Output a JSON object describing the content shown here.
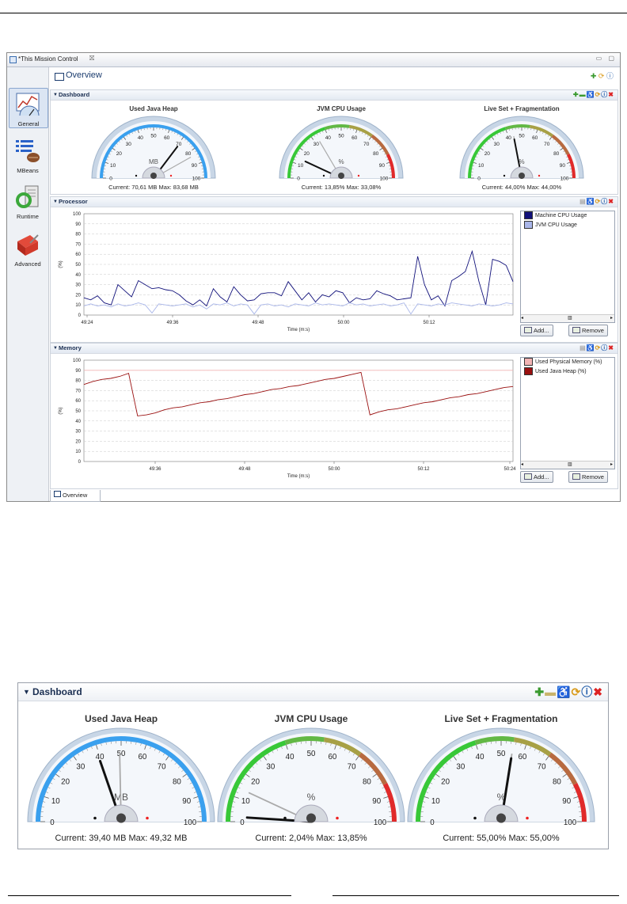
{
  "window": {
    "title": "*This Mission Control",
    "close_glyph": "⛝",
    "window_controls": "▭ ▢"
  },
  "sidebar": {
    "items": [
      {
        "label": "General",
        "icon": "general-chart-icon",
        "selected": true
      },
      {
        "label": "MBeans",
        "icon": "mbeans-icon",
        "selected": false
      },
      {
        "label": "Runtime",
        "icon": "runtime-icon",
        "selected": false
      },
      {
        "label": "Advanced",
        "icon": "advanced-toolbox-icon",
        "selected": false
      }
    ]
  },
  "overview": {
    "title": "Overview",
    "actions": [
      "add-icon",
      "refresh-icon",
      "help-icon"
    ],
    "bottom_tab": "Overview"
  },
  "dashboard": {
    "title": "Dashboard",
    "actions": [
      "add-icon",
      "remove-icon",
      "chart-disabled-icon",
      "refresh-icon",
      "help-icon",
      "close-icon"
    ],
    "gauges": [
      {
        "title": "Used Java Heap",
        "unit": "MB",
        "current_label": "Current: 70,61 MB",
        "max_label": "Max: 83,68 MB",
        "current": 70.61,
        "max": 83.68,
        "colored_arc": false
      },
      {
        "title": "JVM CPU Usage",
        "unit": "%",
        "current_label": "Current: 13,85%",
        "max_label": "Max: 33,08%",
        "current": 13.85,
        "max": 33.08,
        "colored_arc": true
      },
      {
        "title": "Live Set + Fragmentation",
        "unit": "%",
        "current_label": "Current: 44,00%",
        "max_label": "Max: 44,00%",
        "current": 44.0,
        "max": 44.0,
        "colored_arc": true
      }
    ],
    "ticks": [
      "0",
      "10",
      "20",
      "30",
      "40",
      "50",
      "60",
      "70",
      "80",
      "90",
      "100"
    ]
  },
  "processor": {
    "title": "Processor",
    "legend": [
      "Machine CPU Usage",
      "JVM CPU Usage"
    ],
    "legend_colors": [
      "#10107a",
      "#a9b6e9"
    ],
    "buttons": [
      "Add...",
      "Remove"
    ],
    "actions": [
      "chart-disabled-icon",
      "pin-icon",
      "refresh-icon",
      "help-icon",
      "close-icon"
    ]
  },
  "memory": {
    "title": "Memory",
    "legend": [
      "Used Physical Memory (%)",
      "Used Java Heap (%)"
    ],
    "legend_colors": [
      "#f2b4b4",
      "#9a1010"
    ],
    "buttons": [
      "Add...",
      "Remove"
    ],
    "actions": [
      "chart-disabled-icon",
      "pin-icon",
      "refresh-icon",
      "help-icon",
      "close-icon"
    ]
  },
  "dashboard2": {
    "title": "Dashboard",
    "actions": [
      "add-icon",
      "remove-icon",
      "chart-disabled-icon",
      "refresh-icon",
      "help-icon",
      "close-icon"
    ],
    "gauges": [
      {
        "title": "Used Java Heap",
        "unit": "MB",
        "current_label": "Current: 39,40 MB",
        "max_label": "Max: 49,32 MB",
        "current": 39.4,
        "max": 49.32,
        "colored_arc": false
      },
      {
        "title": "JVM CPU Usage",
        "unit": "%",
        "current_label": "Current: 2,04%",
        "max_label": "Max: 13,85%",
        "current": 2.04,
        "max": 13.85,
        "colored_arc": true
      },
      {
        "title": "Live Set + Fragmentation",
        "unit": "%",
        "current_label": "Current: 55,00%",
        "max_label": "Max: 55,00%",
        "current": 55.0,
        "max": 55.0,
        "colored_arc": true
      }
    ]
  },
  "chart_data": [
    {
      "type": "line",
      "xlabel": "Time (m:s)",
      "ylabel": "(%)",
      "ylim": [
        0,
        100
      ],
      "yticks": [
        "0",
        "10",
        "20",
        "30",
        "40",
        "50",
        "60",
        "70",
        "80",
        "90",
        "100"
      ],
      "xticks": [
        "49:24",
        "49:36",
        "49:48",
        "50:00",
        "50:12"
      ],
      "series": [
        {
          "name": "Machine CPU Usage",
          "color": "#10107a",
          "values": [
            17,
            15,
            19,
            12,
            10,
            30,
            24,
            18,
            34,
            30,
            26,
            27,
            25,
            24,
            20,
            14,
            10,
            15,
            9,
            26,
            18,
            13,
            28,
            20,
            14,
            15,
            21,
            22,
            22,
            19,
            33,
            24,
            15,
            22,
            13,
            20,
            18,
            24,
            22,
            12,
            17,
            15,
            16,
            24,
            21,
            19,
            15,
            16,
            17,
            58,
            30,
            15,
            19,
            9,
            34,
            38,
            43,
            63,
            33,
            10,
            55,
            53,
            49,
            33
          ]
        },
        {
          "name": "JVM CPU Usage",
          "color": "#a9b6e9",
          "values": [
            9,
            11,
            9,
            10,
            8,
            11,
            9,
            10,
            12,
            10,
            2,
            11,
            10,
            9,
            10,
            11,
            8,
            10,
            6,
            11,
            10,
            12,
            9,
            11,
            10,
            1,
            10,
            11,
            9,
            10,
            8,
            11,
            10,
            9,
            12,
            10,
            11,
            10,
            9,
            12,
            10,
            11,
            9,
            10,
            11,
            9,
            10,
            12,
            1,
            11,
            10,
            9,
            11,
            10,
            12,
            11,
            10,
            9,
            11,
            10,
            9,
            10,
            12,
            11
          ]
        }
      ]
    },
    {
      "type": "line",
      "xlabel": "Time (m:s)",
      "ylabel": "(%)",
      "ylim": [
        0,
        100
      ],
      "yticks": [
        "0",
        "10",
        "20",
        "30",
        "40",
        "50",
        "60",
        "70",
        "80",
        "90",
        "100"
      ],
      "xticks": [
        "49:36",
        "49:48",
        "50:00",
        "50:12",
        "50:24"
      ],
      "series": [
        {
          "name": "Used Physical Memory (%)",
          "color": "#f2b4b4",
          "values": [
            90,
            90,
            90,
            90,
            90,
            90,
            90,
            90,
            90,
            90,
            90,
            90,
            90,
            90,
            90,
            90,
            90,
            90,
            90,
            90,
            90,
            90,
            90,
            90,
            90,
            90,
            90,
            90,
            90,
            90,
            90,
            90,
            90,
            90,
            90,
            90,
            90,
            90,
            90,
            90,
            90,
            90,
            90,
            90,
            90,
            90,
            90,
            90,
            90
          ]
        },
        {
          "name": "Used Java Heap (%)",
          "color": "#9a1010",
          "values": [
            76,
            79,
            81,
            82,
            84,
            87,
            45,
            46,
            48,
            51,
            53,
            54,
            56,
            58,
            59,
            61,
            62,
            64,
            66,
            67,
            69,
            71,
            72,
            74,
            75,
            77,
            79,
            81,
            82,
            84,
            86,
            88,
            46,
            49,
            51,
            52,
            54,
            56,
            58,
            59,
            61,
            63,
            64,
            66,
            67,
            69,
            71,
            73,
            74
          ]
        }
      ]
    }
  ]
}
